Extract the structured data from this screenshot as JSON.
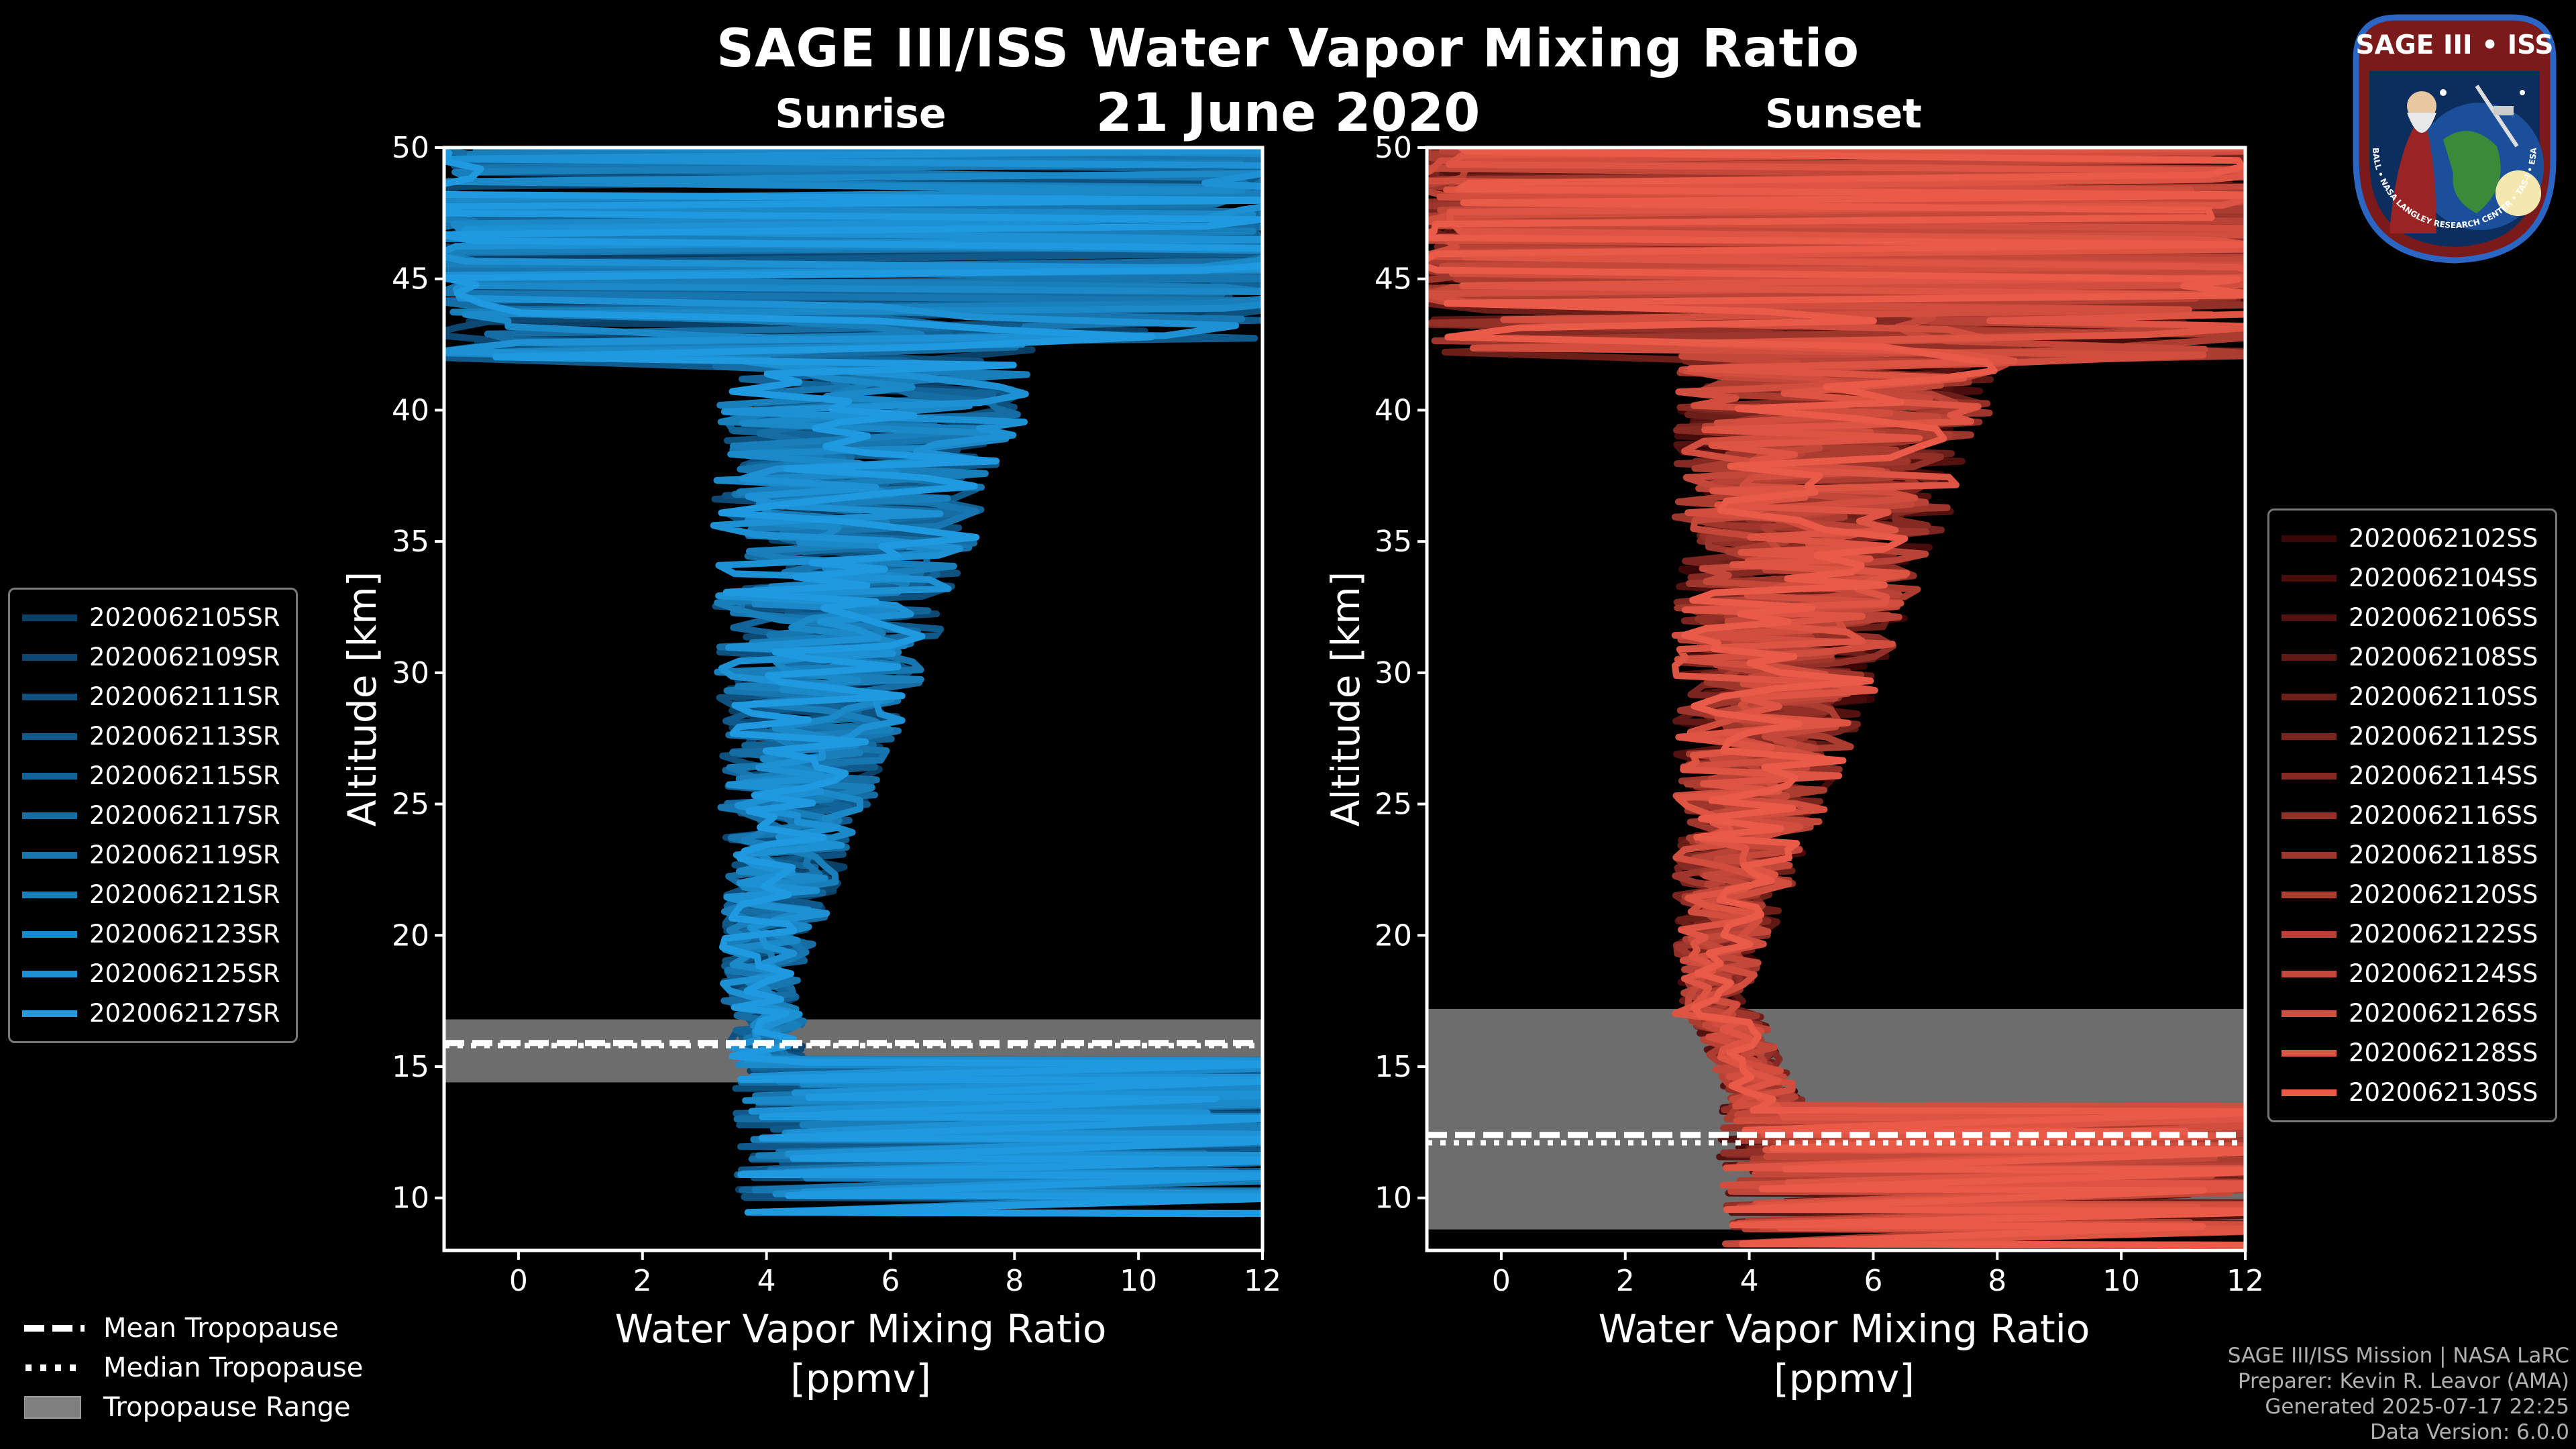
{
  "header": {
    "title": "SAGE III/ISS Water Vapor Mixing Ratio",
    "subtitle": "21 June 2020"
  },
  "logo": {
    "top_text": "SAGE III • ISS",
    "ring_text": "BALL • NASA LANGLEY RESEARCH CENTER • TAS-I • ESA"
  },
  "chart_data": [
    {
      "type": "line",
      "title": "Sunrise",
      "xlabel_line1": "Water Vapor Mixing Ratio",
      "xlabel_line2": "[ppmv]",
      "ylabel": "Altitude [km]",
      "xlim": [
        -1.2,
        12
      ],
      "ylim": [
        8,
        50
      ],
      "xticks": [
        0,
        2,
        4,
        6,
        8,
        10,
        12
      ],
      "yticks": [
        10,
        15,
        20,
        25,
        30,
        35,
        40,
        45,
        50
      ],
      "color_dark": "#0a3f66",
      "color_bright": "#1f9ae0",
      "tropopause": {
        "min_km": 14.4,
        "max_km": 16.8,
        "mean_km": 15.9,
        "median_km": 15.8
      },
      "series": [
        {
          "name": "2020062105SR"
        },
        {
          "name": "2020062109SR"
        },
        {
          "name": "2020062111SR"
        },
        {
          "name": "2020062113SR"
        },
        {
          "name": "2020062115SR"
        },
        {
          "name": "2020062117SR"
        },
        {
          "name": "2020062119SR"
        },
        {
          "name": "2020062121SR"
        },
        {
          "name": "2020062123SR"
        },
        {
          "name": "2020062125SR"
        },
        {
          "name": "2020062127SR"
        }
      ]
    },
    {
      "type": "line",
      "title": "Sunset",
      "xlabel_line1": "Water Vapor Mixing Ratio",
      "xlabel_line2": "[ppmv]",
      "ylabel": "Altitude [km]",
      "xlim": [
        -1.2,
        12
      ],
      "ylim": [
        8,
        50
      ],
      "xticks": [
        0,
        2,
        4,
        6,
        8,
        10,
        12
      ],
      "yticks": [
        10,
        15,
        20,
        25,
        30,
        35,
        40,
        45,
        50
      ],
      "color_dark": "#3a0606",
      "color_bright": "#ea5a48",
      "tropopause": {
        "min_km": 8.8,
        "max_km": 17.2,
        "mean_km": 12.4,
        "median_km": 12.1
      },
      "series": [
        {
          "name": "2020062102SS"
        },
        {
          "name": "2020062104SS"
        },
        {
          "name": "2020062106SS"
        },
        {
          "name": "2020062108SS"
        },
        {
          "name": "2020062110SS"
        },
        {
          "name": "2020062112SS"
        },
        {
          "name": "2020062114SS"
        },
        {
          "name": "2020062116SS"
        },
        {
          "name": "2020062118SS"
        },
        {
          "name": "2020062120SS"
        },
        {
          "name": "2020062122SS"
        },
        {
          "name": "2020062124SS"
        },
        {
          "name": "2020062126SS"
        },
        {
          "name": "2020062128SS"
        },
        {
          "name": "2020062130SS"
        }
      ]
    }
  ],
  "bottom_legend": {
    "mean": "Mean Tropopause",
    "median": "Median Tropopause",
    "range": "Tropopause Range",
    "range_color": "#808080"
  },
  "credits": {
    "line1": "SAGE III/ISS Mission | NASA LaRC",
    "line2": "Preparer: Kevin R. Leavor (AMA)",
    "line3": "Generated 2025-07-17 22:25",
    "line4": "Data Version: 6.0.0"
  }
}
